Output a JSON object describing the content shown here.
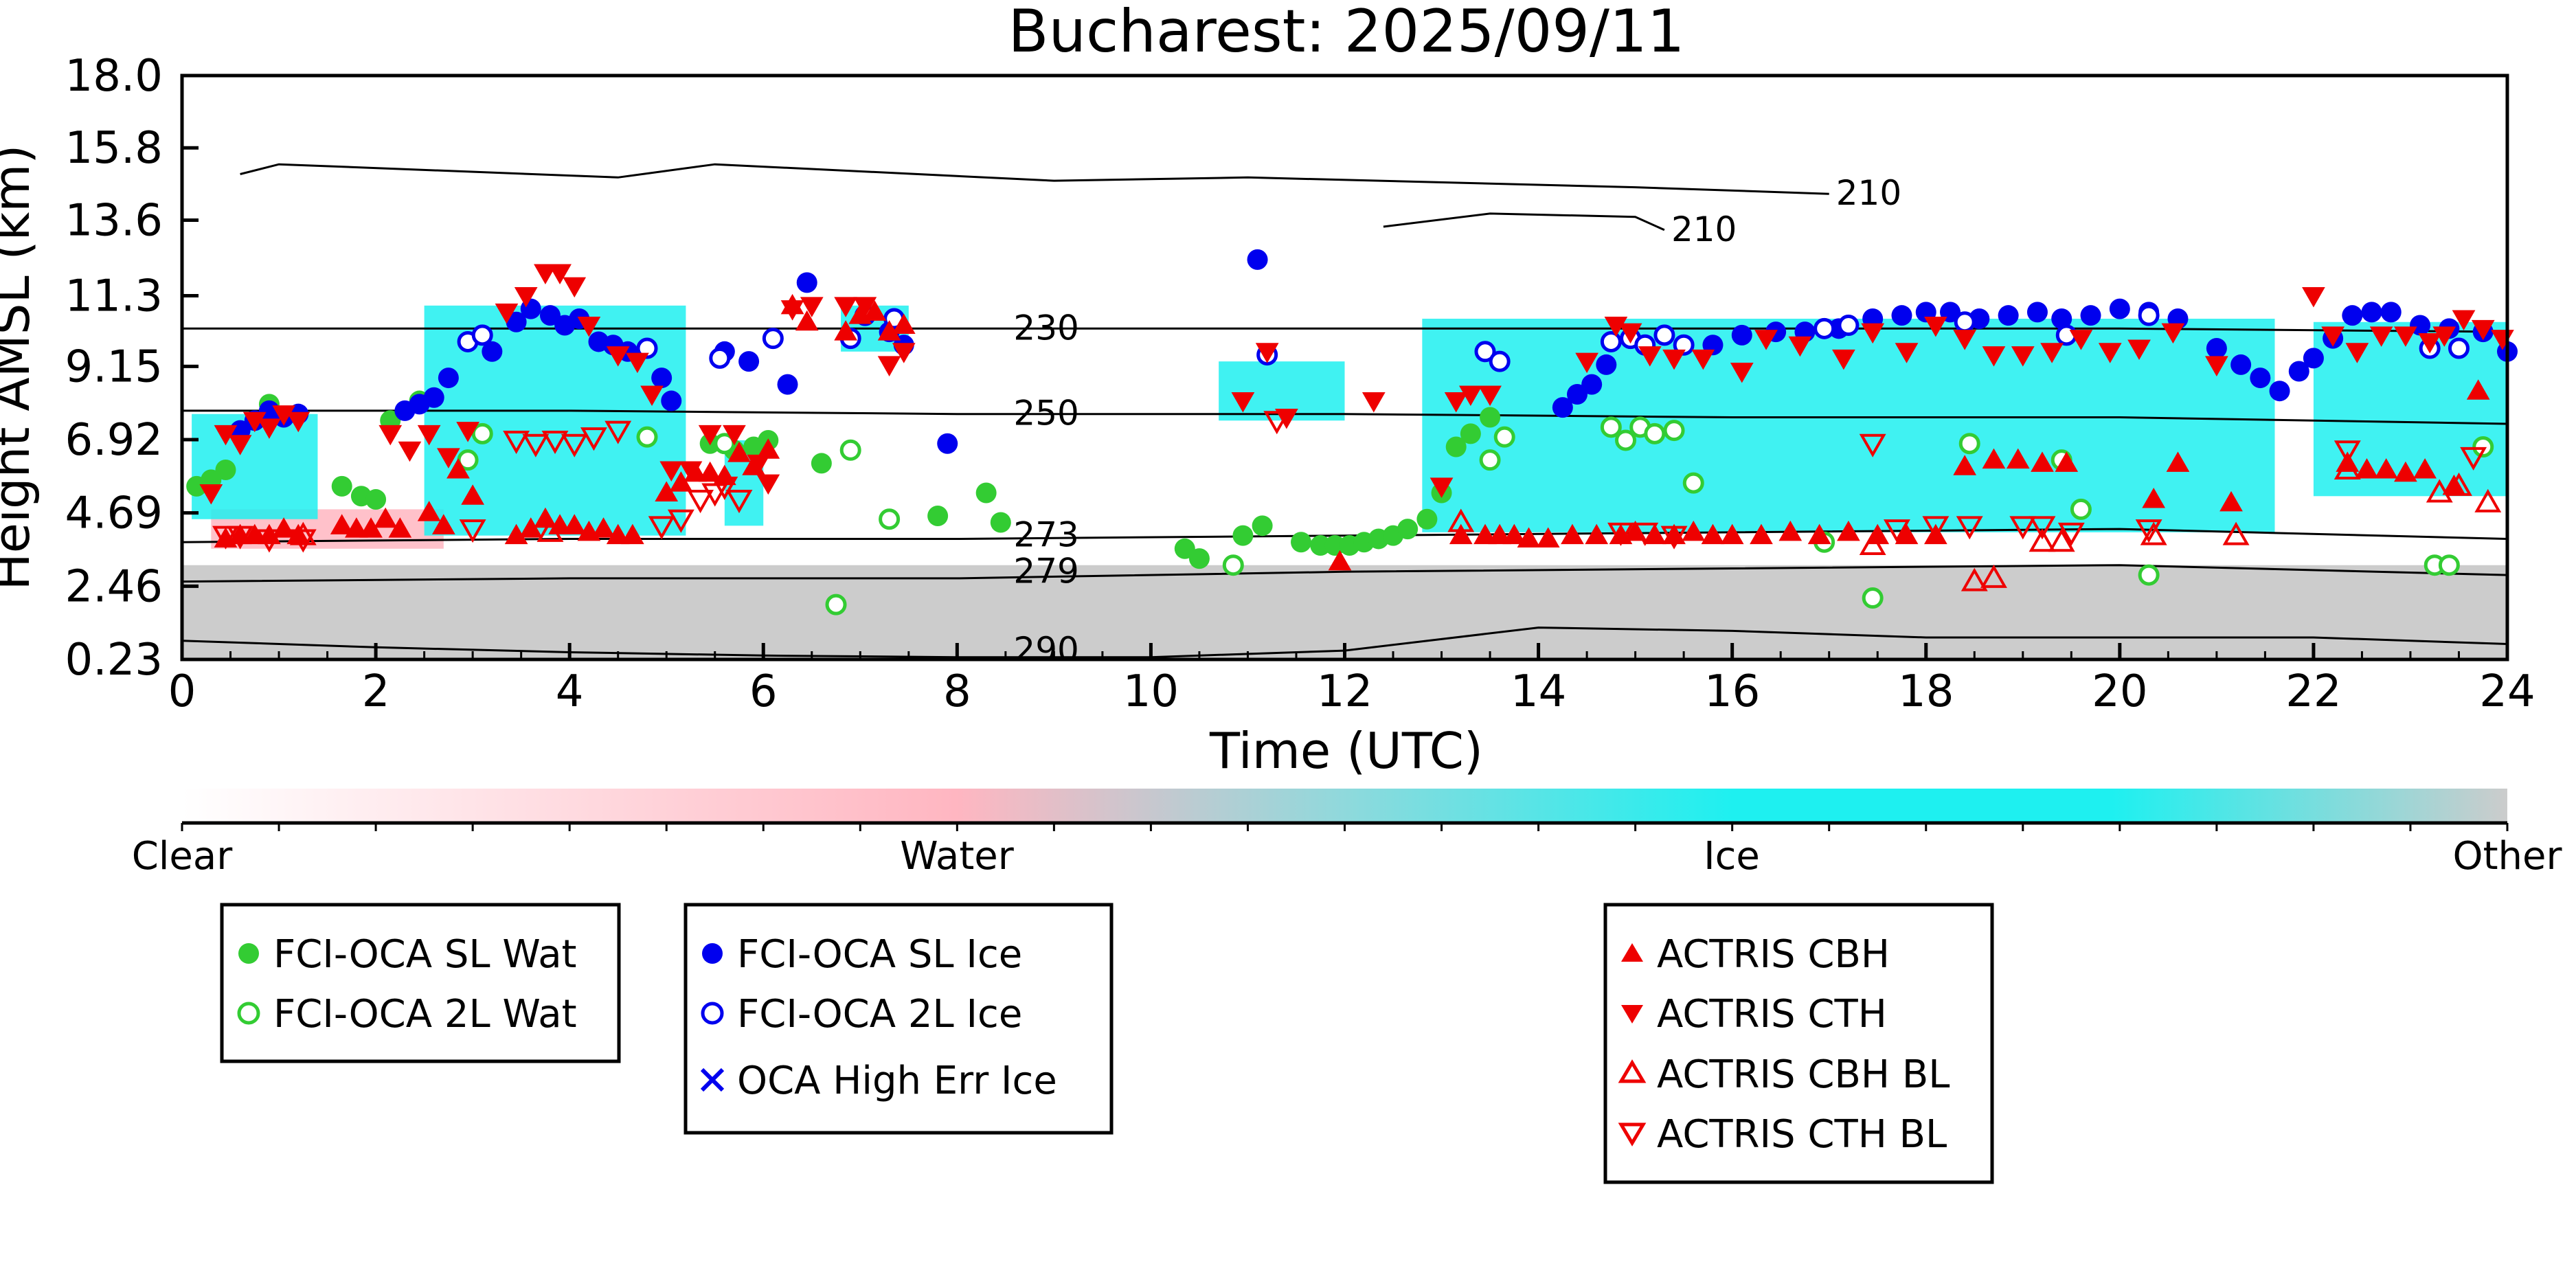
{
  "title": "Bucharest: 2025/09/11",
  "xlabel": "Time (UTC)",
  "ylabel": "Height AMSL (km)",
  "colorbar": {
    "labels": [
      "Clear",
      "Water",
      "Ice",
      "Other"
    ],
    "colors": [
      "#ffffff",
      "#ffb6c1",
      "#1ef0f0",
      "#cccccc"
    ]
  },
  "legends": [
    {
      "items": [
        {
          "label": "FCI-OCA SL Wat",
          "icon": "filled-circle-green"
        },
        {
          "label": "FCI-OCA 2L Wat",
          "icon": "open-circle-green"
        }
      ]
    },
    {
      "items": [
        {
          "label": "FCI-OCA SL Ice",
          "icon": "filled-circle-blue"
        },
        {
          "label": "FCI-OCA 2L Ice",
          "icon": "open-circle-blue"
        },
        {
          "label": "OCA High Err Ice",
          "icon": "x-blue"
        }
      ]
    },
    {
      "items": [
        {
          "label": "ACTRIS CBH",
          "icon": "filled-triangle-up-red"
        },
        {
          "label": "ACTRIS CTH",
          "icon": "filled-triangle-down-red"
        },
        {
          "label": "ACTRIS CBH BL",
          "icon": "open-triangle-up-red"
        },
        {
          "label": "ACTRIS CTH BL",
          "icon": "open-triangle-down-red"
        }
      ]
    }
  ],
  "chart_data": {
    "type": "scatter",
    "title": "Bucharest: 2025/09/11",
    "xlabel": "Time (UTC)",
    "ylabel": "Height AMSL (km)",
    "xlim": [
      0,
      24
    ],
    "ylim": [
      0.23,
      18.0
    ],
    "xticks": [
      "0",
      "2",
      "4",
      "6",
      "8",
      "10",
      "12",
      "14",
      "16",
      "18",
      "20",
      "22",
      "24"
    ],
    "yticks": [
      "0.23",
      "2.46",
      "4.69",
      "6.92",
      "9.15",
      "11.3",
      "13.6",
      "15.8",
      "18.0"
    ],
    "contours": [
      {
        "label": "290",
        "x": [
          0,
          2,
          4,
          6,
          8,
          10,
          12,
          14,
          16,
          18,
          20,
          22,
          24
        ],
        "y": [
          0.8,
          0.6,
          0.45,
          0.35,
          0.3,
          0.3,
          0.5,
          1.2,
          1.1,
          0.9,
          0.9,
          0.9,
          0.7
        ]
      },
      {
        "label": "279",
        "x": [
          0,
          4,
          8,
          12,
          16,
          20,
          24
        ],
        "y": [
          2.6,
          2.7,
          2.7,
          2.9,
          3.0,
          3.1,
          2.8
        ]
      },
      {
        "label": "273",
        "x": [
          0,
          4,
          8,
          12,
          16,
          20,
          24
        ],
        "y": [
          3.8,
          3.9,
          3.9,
          4.0,
          4.1,
          4.2,
          3.9
        ]
      },
      {
        "label": "250",
        "x": [
          0,
          4,
          8,
          12,
          16,
          20,
          24
        ],
        "y": [
          7.8,
          7.8,
          7.7,
          7.7,
          7.6,
          7.6,
          7.4
        ]
      },
      {
        "label": "230",
        "x": [
          0,
          4,
          8,
          12,
          16,
          20,
          24
        ],
        "y": [
          10.3,
          10.3,
          10.3,
          10.3,
          10.3,
          10.3,
          10.2
        ]
      },
      {
        "label": "210",
        "x": [
          0.6,
          1.0,
          4.5,
          5.5,
          9.0,
          11.0,
          15.0,
          17.0
        ],
        "y": [
          15.0,
          15.3,
          14.9,
          15.3,
          14.8,
          14.9,
          14.6,
          14.4
        ]
      },
      {
        "label": "210",
        "x": [
          12.4,
          13.5,
          15.0,
          15.3
        ],
        "y": [
          13.4,
          13.8,
          13.7,
          13.3
        ]
      }
    ],
    "cloud_regions": [
      {
        "class": "Other",
        "x": [
          0,
          24
        ],
        "y": [
          0.23,
          3.1
        ]
      },
      {
        "class": "Water",
        "x": [
          0.3,
          2.7
        ],
        "y": [
          3.6,
          4.8
        ]
      },
      {
        "class": "Ice",
        "x": [
          0.1,
          1.4
        ],
        "y": [
          4.5,
          7.7
        ]
      },
      {
        "class": "Ice",
        "x": [
          2.5,
          5.2
        ],
        "y": [
          4.0,
          11.0
        ]
      },
      {
        "class": "Ice",
        "x": [
          5.6,
          6.0
        ],
        "y": [
          4.3,
          6.9
        ]
      },
      {
        "class": "Ice",
        "x": [
          6.8,
          7.5
        ],
        "y": [
          9.6,
          11.0
        ]
      },
      {
        "class": "Ice",
        "x": [
          10.7,
          12.0
        ],
        "y": [
          7.5,
          9.3
        ]
      },
      {
        "class": "Ice",
        "x": [
          12.8,
          21.6
        ],
        "y": [
          4.1,
          10.6
        ]
      },
      {
        "class": "Ice",
        "x": [
          22.0,
          24.0
        ],
        "y": [
          5.2,
          10.5
        ]
      }
    ],
    "series": [
      {
        "name": "FCI-OCA SL Wat",
        "color": "#33cc33",
        "marker": "filled-circle",
        "x": [
          0.15,
          0.3,
          0.45,
          0.9,
          1.65,
          1.85,
          2.0,
          2.15,
          2.45,
          5.45,
          5.7,
          5.9,
          6.05,
          6.6,
          7.8,
          8.3,
          8.45,
          10.35,
          10.5,
          10.95,
          11.15,
          11.55,
          11.75,
          11.9,
          12.05,
          12.2,
          12.35,
          12.5,
          12.65,
          12.85,
          13.0,
          13.15,
          13.3,
          13.5
        ],
        "y": [
          5.5,
          5.7,
          6.0,
          8.0,
          5.5,
          5.2,
          5.1,
          7.5,
          8.1,
          6.8,
          6.6,
          6.7,
          6.9,
          6.2,
          4.6,
          5.3,
          4.4,
          3.6,
          3.3,
          4.0,
          4.3,
          3.8,
          3.7,
          3.7,
          3.7,
          3.8,
          3.9,
          4.0,
          4.2,
          4.5,
          5.3,
          6.7,
          7.1,
          7.6
        ]
      },
      {
        "name": "FCI-OCA 2L Wat",
        "color": "#33cc33",
        "marker": "open-circle",
        "x": [
          2.95,
          3.1,
          4.8,
          5.6,
          6.75,
          6.9,
          7.3,
          10.85,
          13.5,
          13.65,
          14.75,
          14.9,
          15.05,
          15.2,
          15.4,
          15.6,
          16.95,
          17.45,
          18.45,
          19.4,
          19.6,
          20.3,
          23.25,
          23.4,
          23.75
        ],
        "y": [
          6.3,
          7.1,
          7.0,
          6.8,
          1.9,
          6.6,
          4.5,
          3.1,
          6.3,
          7.0,
          7.3,
          6.9,
          7.3,
          7.1,
          7.2,
          5.6,
          3.8,
          2.1,
          6.8,
          6.3,
          4.8,
          2.8,
          3.1,
          3.1,
          6.7
        ]
      },
      {
        "name": "FCI-OCA SL Ice",
        "color": "#0000ee",
        "marker": "filled-circle",
        "x": [
          0.6,
          0.75,
          0.9,
          1.05,
          1.2,
          2.3,
          2.45,
          2.6,
          2.75,
          3.2,
          3.45,
          3.6,
          3.8,
          3.95,
          4.1,
          4.3,
          4.45,
          4.6,
          4.95,
          5.05,
          5.6,
          5.85,
          6.25,
          6.45,
          7.3,
          7.45,
          7.9,
          11.1,
          14.25,
          14.4,
          14.55,
          14.7,
          15.8,
          16.1,
          16.45,
          16.75,
          17.1,
          17.45,
          17.75,
          18.0,
          18.25,
          18.55,
          18.85,
          19.15,
          19.4,
          19.7,
          20.0,
          20.3,
          20.6,
          21.0,
          21.25,
          21.45,
          21.65,
          21.85,
          22.0,
          22.2,
          22.4,
          22.6,
          22.8,
          23.1,
          23.4,
          23.75,
          24.0
        ],
        "y": [
          7.2,
          7.5,
          7.8,
          7.6,
          7.7,
          7.8,
          8.0,
          8.2,
          8.8,
          9.6,
          10.5,
          10.9,
          10.7,
          10.4,
          10.6,
          9.9,
          9.8,
          9.6,
          8.8,
          8.1,
          9.6,
          9.3,
          8.6,
          11.7,
          10.2,
          9.8,
          6.8,
          12.4,
          7.9,
          8.3,
          8.6,
          9.2,
          9.8,
          10.1,
          10.2,
          10.2,
          10.3,
          10.6,
          10.7,
          10.8,
          10.8,
          10.6,
          10.7,
          10.8,
          10.6,
          10.7,
          10.9,
          10.8,
          10.6,
          9.7,
          9.2,
          8.8,
          8.4,
          9.0,
          9.4,
          10.0,
          10.7,
          10.8,
          10.8,
          10.4,
          10.3,
          10.2,
          9.6
        ]
      },
      {
        "name": "FCI-OCA 2L Ice",
        "color": "#0000ee",
        "marker": "open-circle",
        "x": [
          2.95,
          3.1,
          4.8,
          5.55,
          6.1,
          6.9,
          7.05,
          7.35,
          11.2,
          13.45,
          13.6,
          14.75,
          14.95,
          15.1,
          15.3,
          15.5,
          16.95,
          17.2,
          18.4,
          19.45,
          20.3,
          23.2,
          23.5
        ],
        "y": [
          9.9,
          10.1,
          9.7,
          9.4,
          10.0,
          10.0,
          10.7,
          10.6,
          9.5,
          9.6,
          9.3,
          9.9,
          10.0,
          9.8,
          10.1,
          9.8,
          10.3,
          10.4,
          10.5,
          10.1,
          10.7,
          9.7,
          9.7
        ]
      },
      {
        "name": "ACTRIS CBH",
        "color": "#ee0000",
        "marker": "filled-triangle-up",
        "x": [
          0.45,
          0.6,
          0.75,
          0.9,
          1.05,
          1.2,
          1.65,
          1.8,
          1.95,
          2.1,
          2.25,
          2.55,
          2.7,
          2.85,
          3.0,
          3.45,
          3.6,
          3.75,
          3.9,
          4.05,
          4.2,
          4.35,
          4.5,
          4.65,
          5.0,
          5.15,
          5.3,
          5.45,
          5.6,
          5.75,
          5.9,
          6.05,
          6.3,
          6.45,
          6.85,
          7.0,
          7.15,
          7.3,
          7.45,
          11.95,
          13.2,
          13.45,
          13.6,
          13.75,
          13.9,
          14.1,
          14.35,
          14.6,
          14.85,
          15.0,
          15.2,
          15.4,
          15.6,
          15.8,
          16.0,
          16.3,
          16.6,
          16.9,
          17.2,
          17.5,
          17.8,
          18.1,
          18.4,
          18.7,
          18.95,
          19.2,
          19.45,
          20.35,
          20.6,
          21.15,
          22.35,
          22.55,
          22.75,
          22.95,
          23.15,
          23.45,
          23.7
        ],
        "y": [
          3.9,
          4.0,
          4.0,
          4.0,
          4.2,
          4.0,
          4.3,
          4.2,
          4.2,
          4.5,
          4.2,
          4.7,
          4.3,
          6.0,
          5.2,
          4.0,
          4.2,
          4.5,
          4.3,
          4.3,
          4.1,
          4.2,
          4.0,
          4.0,
          5.3,
          5.6,
          5.9,
          5.9,
          5.8,
          6.5,
          6.1,
          6.6,
          11.0,
          10.5,
          10.2,
          10.7,
          10.8,
          10.2,
          10.4,
          3.2,
          4.0,
          4.0,
          4.0,
          4.0,
          3.9,
          3.9,
          4.0,
          4.0,
          4.0,
          4.1,
          4.0,
          4.0,
          4.1,
          4.0,
          4.0,
          4.0,
          4.1,
          4.0,
          4.1,
          4.0,
          4.0,
          4.0,
          6.1,
          6.3,
          6.3,
          6.2,
          6.2,
          5.1,
          6.2,
          5.0,
          6.2,
          6.0,
          6.0,
          5.9,
          6.0,
          5.5,
          8.4
        ]
      },
      {
        "name": "ACTRIS CTH",
        "color": "#ee0000",
        "marker": "filled-triangle-down",
        "x": [
          0.3,
          0.45,
          0.6,
          0.75,
          0.9,
          1.05,
          1.2,
          2.15,
          2.35,
          2.55,
          2.75,
          2.95,
          3.35,
          3.55,
          3.75,
          3.9,
          4.05,
          4.2,
          4.5,
          4.7,
          4.85,
          5.05,
          5.25,
          5.45,
          5.7,
          5.95,
          6.05,
          6.3,
          6.5,
          6.85,
          7.05,
          7.3,
          7.45,
          10.95,
          11.2,
          11.4,
          12.3,
          13.0,
          13.15,
          13.3,
          13.5,
          14.5,
          14.8,
          14.95,
          15.15,
          15.4,
          15.7,
          16.1,
          16.35,
          16.7,
          17.15,
          17.45,
          17.8,
          18.1,
          18.4,
          18.7,
          19.0,
          19.3,
          19.6,
          19.9,
          20.2,
          20.55,
          21.0,
          22.0,
          22.2,
          22.45,
          22.7,
          22.95,
          23.2,
          23.35,
          23.55,
          23.75,
          23.95
        ],
        "y": [
          5.3,
          7.1,
          6.8,
          7.5,
          7.3,
          7.7,
          7.5,
          7.1,
          6.6,
          7.1,
          6.4,
          7.2,
          10.8,
          11.3,
          12.0,
          12.0,
          11.6,
          10.4,
          9.5,
          9.3,
          8.3,
          6.0,
          6.0,
          7.1,
          7.1,
          6.2,
          5.6,
          10.9,
          11.0,
          11.0,
          11.0,
          9.2,
          9.6,
          8.1,
          9.6,
          7.6,
          8.1,
          5.5,
          8.1,
          8.3,
          8.3,
          9.3,
          10.4,
          10.2,
          9.5,
          9.4,
          9.4,
          9.0,
          10.0,
          9.8,
          9.4,
          10.2,
          9.6,
          10.4,
          10.0,
          9.5,
          9.5,
          9.6,
          10.0,
          9.6,
          9.7,
          10.2,
          9.2,
          11.3,
          10.1,
          9.6,
          10.1,
          10.1,
          9.9,
          10.1,
          10.6,
          10.3,
          10.0
        ]
      },
      {
        "name": "ACTRIS CBH BL",
        "color": "#ee0000",
        "marker": "open-triangle-up",
        "x": [
          1.25,
          3.8,
          13.2,
          17.45,
          18.5,
          18.7,
          19.2,
          19.4,
          20.35,
          21.2,
          22.35,
          23.3,
          23.5,
          23.8
        ],
        "y": [
          4.0,
          4.1,
          4.4,
          3.7,
          2.6,
          2.7,
          3.8,
          3.8,
          4.0,
          4.0,
          6.0,
          5.3,
          5.5,
          5.0
        ]
      },
      {
        "name": "ACTRIS CTH BL",
        "color": "#ee0000",
        "marker": "open-triangle-down",
        "x": [
          0.45,
          0.6,
          0.9,
          1.25,
          3.0,
          3.45,
          3.65,
          3.85,
          4.05,
          4.25,
          4.5,
          4.95,
          5.15,
          5.35,
          5.5,
          5.6,
          5.75,
          11.3,
          14.85,
          15.1,
          15.4,
          17.45,
          17.7,
          18.1,
          18.45,
          19.0,
          19.2,
          19.5,
          20.3,
          22.35,
          23.65
        ],
        "y": [
          4.0,
          4.0,
          3.9,
          3.9,
          4.2,
          6.9,
          6.8,
          6.9,
          6.8,
          7.0,
          7.2,
          4.3,
          4.5,
          5.1,
          5.3,
          5.5,
          5.1,
          7.5,
          4.1,
          4.1,
          4.0,
          6.8,
          4.2,
          4.3,
          4.3,
          4.3,
          4.3,
          4.1,
          4.2,
          6.6,
          6.4
        ]
      }
    ]
  }
}
